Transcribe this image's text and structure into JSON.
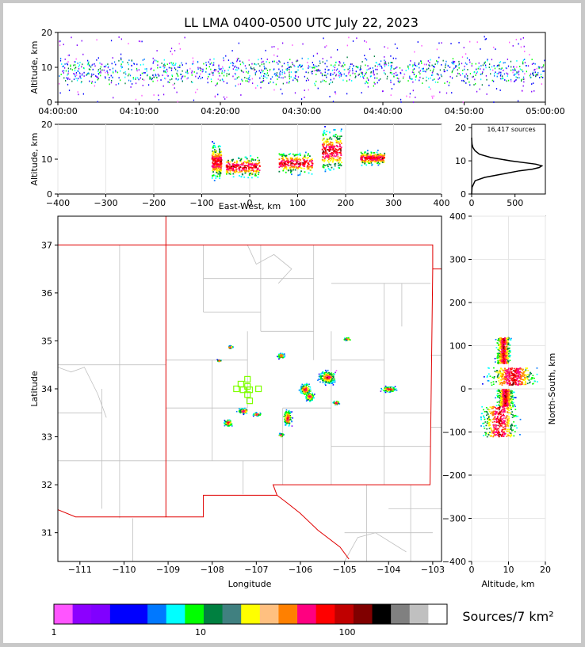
{
  "title": "LL LMA 0400-0500 UTC July 22, 2023",
  "chart_data": [
    {
      "type": "scatter",
      "name": "altitude-vs-time",
      "ylabel": "Altitude, km",
      "xlabel": "",
      "xlim": [
        "04:00:00",
        "05:00:00"
      ],
      "ylim": [
        0,
        20
      ],
      "x_ticks": [
        "04:00:00",
        "04:10:00",
        "04:20:00",
        "04:30:00",
        "04:40:00",
        "04:50:00",
        "05:00:00"
      ],
      "y_ticks": [
        "0",
        "10",
        "20"
      ],
      "altitude_core_km": [
        6,
        12
      ]
    },
    {
      "type": "scatter",
      "name": "altitude-vs-east-west",
      "xlabel": "East-West, km",
      "ylabel": "Altitude, km",
      "xlim": [
        -400,
        400
      ],
      "ylim": [
        0,
        20
      ],
      "x_ticks": [
        "−400",
        "−300",
        "−200",
        "−100",
        "0",
        "100",
        "200",
        "300",
        "400"
      ],
      "y_ticks": [
        "0",
        "10",
        "20"
      ],
      "clusters": [
        {
          "x_range": [
            -80,
            -60
          ],
          "alt_range": [
            3,
            16
          ]
        },
        {
          "x_range": [
            -50,
            20
          ],
          "alt_range": [
            4,
            12
          ]
        },
        {
          "x_range": [
            60,
            130
          ],
          "alt_range": [
            5,
            13
          ]
        },
        {
          "x_range": [
            150,
            190
          ],
          "alt_range": [
            5,
            20
          ]
        },
        {
          "x_range": [
            230,
            280
          ],
          "alt_range": [
            8,
            13
          ]
        }
      ]
    },
    {
      "type": "line",
      "name": "altitude-histogram",
      "annotation": "16,417 sources",
      "xlim": [
        0,
        850
      ],
      "ylim": [
        0,
        21
      ],
      "x_ticks": [
        "0",
        "500"
      ],
      "y_ticks": [
        "0",
        "10",
        "20"
      ],
      "profile": [
        {
          "alt": 0,
          "count": 0
        },
        {
          "alt": 2,
          "count": 5
        },
        {
          "alt": 4,
          "count": 40
        },
        {
          "alt": 5,
          "count": 150
        },
        {
          "alt": 6,
          "count": 350
        },
        {
          "alt": 7,
          "count": 550
        },
        {
          "alt": 7.5,
          "count": 700
        },
        {
          "alt": 8,
          "count": 780
        },
        {
          "alt": 8.5,
          "count": 810
        },
        {
          "alt": 9,
          "count": 740
        },
        {
          "alt": 10,
          "count": 450
        },
        {
          "alt": 11,
          "count": 220
        },
        {
          "alt": 12,
          "count": 90
        },
        {
          "alt": 13,
          "count": 40
        },
        {
          "alt": 14,
          "count": 15
        },
        {
          "alt": 15,
          "count": 5
        },
        {
          "alt": 16,
          "count": 2
        },
        {
          "alt": 17,
          "count": 0
        }
      ]
    },
    {
      "type": "scatter",
      "name": "plan-view-map",
      "xlabel": "Longitude",
      "ylabel": "Latitude",
      "xlim": [
        -111.5,
        -102.8
      ],
      "ylim": [
        30.4,
        37.6
      ],
      "x_ticks": [
        "−111",
        "−110",
        "−109",
        "−108",
        "−107",
        "−106",
        "−105",
        "−104",
        "−103"
      ],
      "y_ticks": [
        "31",
        "32",
        "33",
        "34",
        "35",
        "36",
        "37"
      ],
      "cells": [
        {
          "lon": -105.4,
          "lat": 34.25,
          "w": 0.5,
          "h": 0.35
        },
        {
          "lon": -105.9,
          "lat": 34.0,
          "w": 0.35,
          "h": 0.3
        },
        {
          "lon": -105.8,
          "lat": 33.85,
          "w": 0.25,
          "h": 0.25
        },
        {
          "lon": -106.3,
          "lat": 33.4,
          "w": 0.25,
          "h": 0.45
        },
        {
          "lon": -106.45,
          "lat": 33.05,
          "w": 0.15,
          "h": 0.1
        },
        {
          "lon": -107.3,
          "lat": 33.55,
          "w": 0.35,
          "h": 0.15
        },
        {
          "lon": -107.0,
          "lat": 33.48,
          "w": 0.25,
          "h": 0.1
        },
        {
          "lon": -107.65,
          "lat": 33.3,
          "w": 0.25,
          "h": 0.2
        },
        {
          "lon": -107.6,
          "lat": 34.88,
          "w": 0.15,
          "h": 0.08
        },
        {
          "lon": -107.85,
          "lat": 34.6,
          "w": 0.12,
          "h": 0.06
        },
        {
          "lon": -106.45,
          "lat": 34.7,
          "w": 0.2,
          "h": 0.15
        },
        {
          "lon": -104.95,
          "lat": 35.05,
          "w": 0.25,
          "h": 0.08
        },
        {
          "lon": -104.0,
          "lat": 34.0,
          "w": 0.45,
          "h": 0.15
        },
        {
          "lon": -105.2,
          "lat": 33.72,
          "w": 0.2,
          "h": 0.12
        }
      ],
      "stations": [
        {
          "lon": -107.2,
          "lat": 34.2
        },
        {
          "lon": -107.35,
          "lat": 34.1
        },
        {
          "lon": -107.2,
          "lat": 34.05
        },
        {
          "lon": -107.45,
          "lat": 34.0
        },
        {
          "lon": -107.3,
          "lat": 33.98
        },
        {
          "lon": -107.15,
          "lat": 33.98
        },
        {
          "lon": -106.95,
          "lat": 34.0
        },
        {
          "lon": -107.2,
          "lat": 33.88
        },
        {
          "lon": -107.15,
          "lat": 33.75
        }
      ],
      "state_border_color": "#e00000",
      "county_line_color": "#c0c0c0",
      "station_color": "#7fff00"
    },
    {
      "type": "scatter",
      "name": "north-south-vs-altitude",
      "xlabel": "Altitude, km",
      "ylabel": "North-South, km",
      "xlim": [
        0,
        20
      ],
      "ylim": [
        -400,
        400
      ],
      "x_ticks": [
        "0",
        "10",
        "20"
      ],
      "y_ticks": [
        "−400",
        "−300",
        "−200",
        "−100",
        "0",
        "100",
        "200",
        "300",
        "400"
      ],
      "clusters": [
        {
          "ns_range": [
            60,
            120
          ],
          "alt_range": [
            6,
            11
          ]
        },
        {
          "ns_range": [
            10,
            50
          ],
          "alt_range": [
            2,
            20
          ]
        },
        {
          "ns_range": [
            -40,
            0
          ],
          "alt_range": [
            6,
            12
          ]
        },
        {
          "ns_range": [
            -110,
            -40
          ],
          "alt_range": [
            1,
            14
          ]
        }
      ]
    }
  ],
  "colorbar": {
    "label": "Sources/7 km²",
    "tick_labels": [
      "1",
      "10",
      "100"
    ],
    "colors": [
      "#ff55ff",
      "#8c00ff",
      "#8000ff",
      "#0000ff",
      "#0000ff",
      "#0078ff",
      "#00ffff",
      "#00ff00",
      "#008040",
      "#408080",
      "#ffff00",
      "#ffc080",
      "#ff8000",
      "#ff0080",
      "#ff0000",
      "#c00000",
      "#800000",
      "#000000",
      "#808080",
      "#c0c0c0",
      "#ffffff"
    ]
  },
  "density_colors": [
    "#ff55ff",
    "#8000ff",
    "#0000ff",
    "#0078ff",
    "#00ffff",
    "#00ff00",
    "#008040",
    "#ffff00",
    "#ff8000",
    "#ff0080",
    "#ff0000",
    "#800000",
    "#000000"
  ]
}
